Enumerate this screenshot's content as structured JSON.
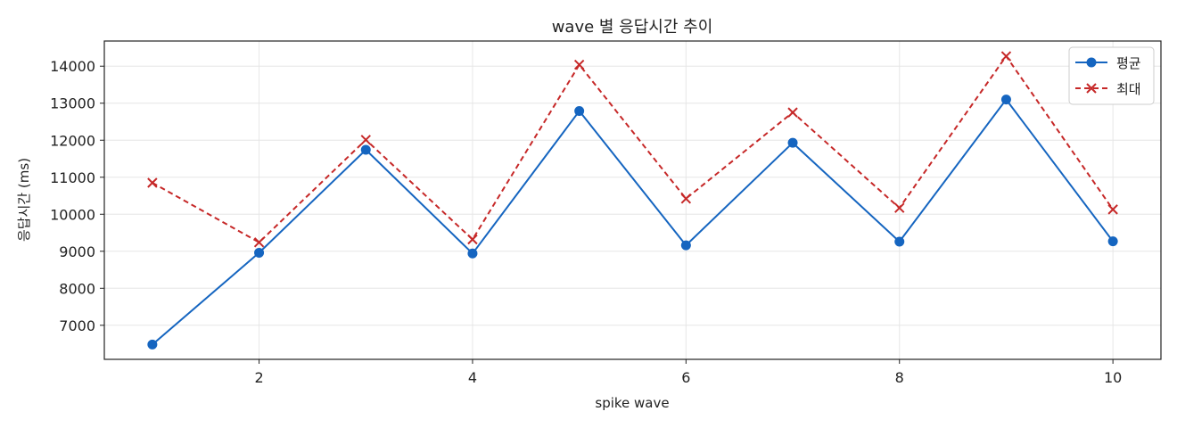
{
  "chart_data": {
    "type": "line",
    "title": "wave 별 응답시간 추이",
    "xlabel": "spike wave",
    "ylabel": "응답시간 (ms)",
    "x": [
      1,
      2,
      3,
      4,
      5,
      6,
      7,
      8,
      9,
      10
    ],
    "xlim": [
      0.55,
      10.45
    ],
    "ylim": [
      6080,
      14680
    ],
    "xticks": [
      2,
      4,
      6,
      8,
      10
    ],
    "yticks": [
      7000,
      8000,
      9000,
      10000,
      11000,
      12000,
      13000,
      14000
    ],
    "grid": true,
    "legend_position": "top-right",
    "series": [
      {
        "name": "평균",
        "values": [
          6480,
          8960,
          11740,
          8940,
          12790,
          9160,
          11930,
          9260,
          13100,
          9270
        ],
        "color": "#1565c0",
        "style": "solid",
        "marker": "circle"
      },
      {
        "name": "최대",
        "values": [
          10850,
          9240,
          12010,
          9320,
          14040,
          10420,
          12750,
          10170,
          14270,
          10130
        ],
        "color": "#c62828",
        "style": "dashed",
        "marker": "x"
      }
    ]
  }
}
